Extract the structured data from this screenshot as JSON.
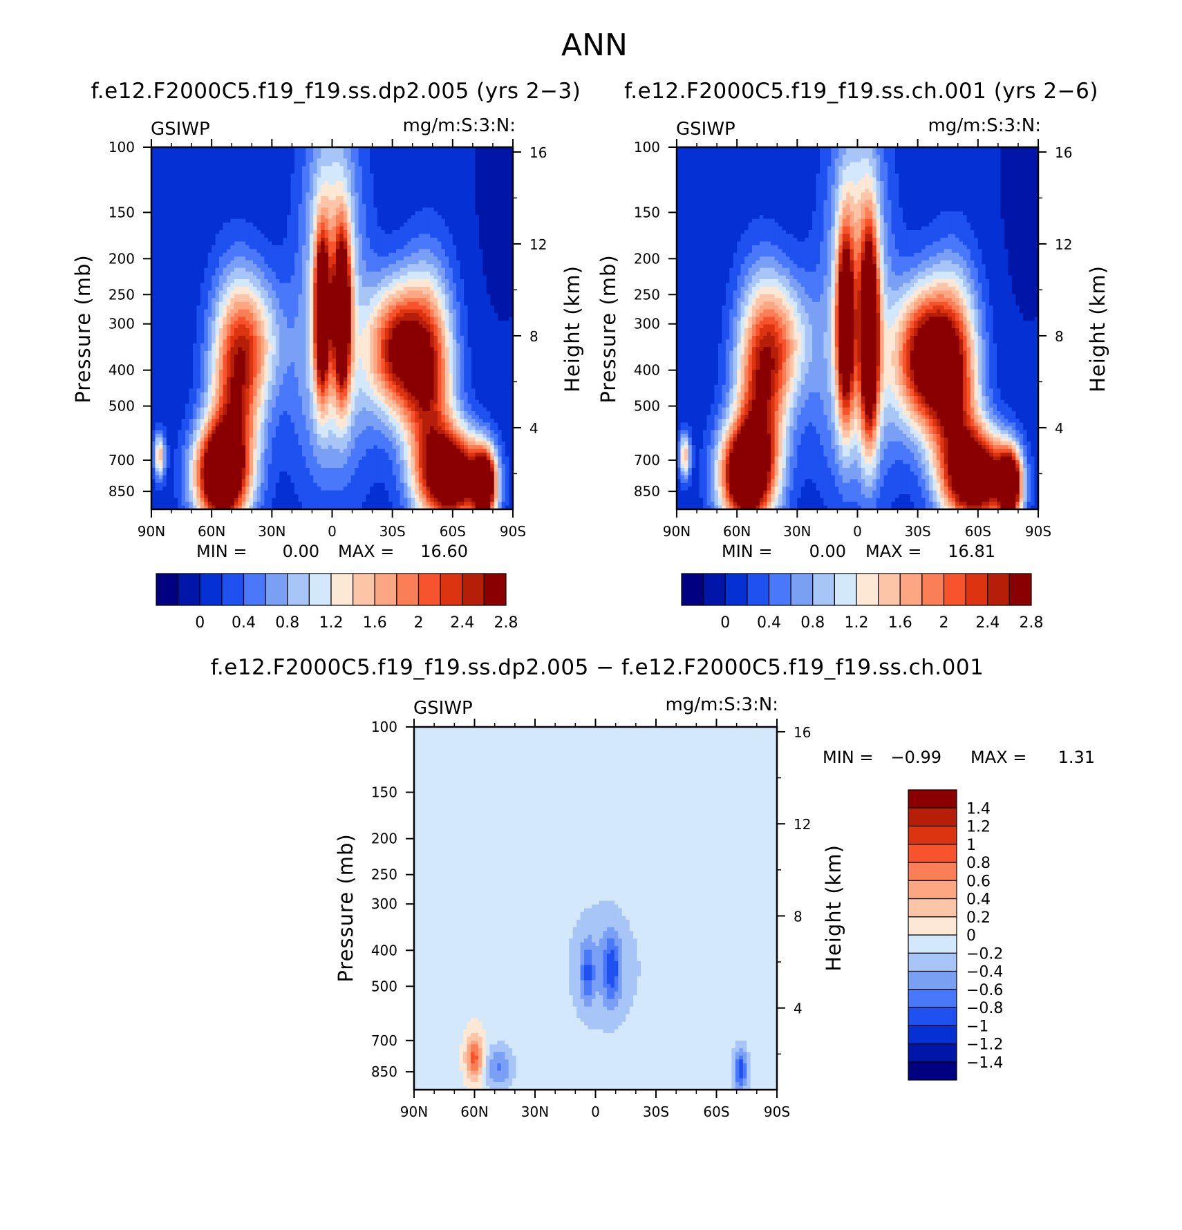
{
  "figure": {
    "title": "ANN",
    "diff_title": "f.e12.F2000C5.f19_f19.ss.dp2.005 − f.e12.F2000C5.f19_f19.ss.ch.001"
  },
  "chart_data": [
    {
      "type": "heatmap",
      "title": "f.e12.F2000C5.f19_f19.ss.dp2.005 (yrs 2−3)",
      "variable": "GSIWP",
      "units": "mg/m:S:3:N:",
      "ylabel": "Pressure (mb)",
      "ylabel_right": "Height (km)",
      "x_ticks": [
        "90N",
        "60N",
        "30N",
        "0",
        "30S",
        "60S",
        "90S"
      ],
      "y_ticks": [
        "100",
        "150",
        "200",
        "250",
        "300",
        "400",
        "500",
        "700",
        "850"
      ],
      "y_right_ticks": [
        "16",
        "12",
        "8",
        "4"
      ],
      "stats": {
        "min_label": "MIN =",
        "min": "0.00",
        "max_label": "MAX =",
        "max": "16.60"
      },
      "colorbar_labels": [
        "0",
        "0.4",
        "0.8",
        "1.2",
        "1.6",
        "2",
        "2.4",
        "2.8"
      ],
      "colors": [
        "#000080",
        "#0016a8",
        "#0531d4",
        "#1f50f0",
        "#4a78fa",
        "#7aa0f5",
        "#a8c5f7",
        "#d4e8fc",
        "#fde8d6",
        "#fcc5a8",
        "#fca682",
        "#fb7f56",
        "#f7532d",
        "#dc3410",
        "#b51e08",
        "#8a0000"
      ],
      "features": [
        {
          "lat": -85,
          "p": 130,
          "sx": 12,
          "sy": 0.7,
          "v": -0.1
        },
        {
          "lat": -32,
          "p": 350,
          "sx": 10,
          "sy": 0.28,
          "v": 2.4
        },
        {
          "lat": -48,
          "p": 420,
          "sx": 9,
          "sy": 0.45,
          "v": 2.3
        },
        {
          "lat": -60,
          "p": 780,
          "sx": 11,
          "sy": 0.2,
          "v": 3.4
        },
        {
          "lat": -76,
          "p": 820,
          "sx": 4,
          "sy": 0.15,
          "v": 3.3
        },
        {
          "lat": -5,
          "p": 280,
          "sx": 3,
          "sy": 0.35,
          "v": 3.2
        },
        {
          "lat": 5,
          "p": 280,
          "sx": 2.7,
          "sy": 0.35,
          "v": 3.0
        },
        {
          "lat": 0,
          "p": 160,
          "sx": 10,
          "sy": 0.55,
          "v": 1.1
        },
        {
          "lat": 0,
          "p": 420,
          "sx": 14,
          "sy": 0.5,
          "v": 0.9
        },
        {
          "lat": 48,
          "p": 450,
          "sx": 9,
          "sy": 0.45,
          "v": 2.2
        },
        {
          "lat": 38,
          "p": 330,
          "sx": 10,
          "sy": 0.28,
          "v": 1.0
        },
        {
          "lat": 56,
          "p": 770,
          "sx": 9,
          "sy": 0.22,
          "v": 3.5
        },
        {
          "lat": 86,
          "p": 680,
          "sx": 2,
          "sy": 0.1,
          "v": 1.5
        }
      ]
    },
    {
      "type": "heatmap",
      "title": "f.e12.F2000C5.f19_f19.ss.ch.001 (yrs 2−6)",
      "variable": "GSIWP",
      "units": "mg/m:S:3:N:",
      "ylabel": "Pressure (mb)",
      "ylabel_right": "Height (km)",
      "x_ticks": [
        "90N",
        "60N",
        "30N",
        "0",
        "30S",
        "60S",
        "90S"
      ],
      "y_ticks": [
        "100",
        "150",
        "200",
        "250",
        "300",
        "400",
        "500",
        "700",
        "850"
      ],
      "y_right_ticks": [
        "16",
        "12",
        "8",
        "4"
      ],
      "stats": {
        "min_label": "MIN =",
        "min": "0.00",
        "max_label": "MAX =",
        "max": "16.81"
      },
      "colorbar_labels": [
        "0",
        "0.4",
        "0.8",
        "1.2",
        "1.6",
        "2",
        "2.4",
        "2.8"
      ],
      "colors": [
        "#000080",
        "#0016a8",
        "#0531d4",
        "#1f50f0",
        "#4a78fa",
        "#7aa0f5",
        "#a8c5f7",
        "#d4e8fc",
        "#fde8d6",
        "#fcc5a8",
        "#fca682",
        "#fb7f56",
        "#f7532d",
        "#dc3410",
        "#b51e08",
        "#8a0000"
      ],
      "features": [
        {
          "lat": -85,
          "p": 130,
          "sx": 12,
          "sy": 0.7,
          "v": -0.1
        },
        {
          "lat": -33,
          "p": 370,
          "sx": 10,
          "sy": 0.3,
          "v": 2.7
        },
        {
          "lat": -48,
          "p": 430,
          "sx": 9,
          "sy": 0.45,
          "v": 2.4
        },
        {
          "lat": -60,
          "p": 780,
          "sx": 11,
          "sy": 0.2,
          "v": 3.4
        },
        {
          "lat": -76,
          "p": 820,
          "sx": 4,
          "sy": 0.15,
          "v": 3.3
        },
        {
          "lat": -6,
          "p": 320,
          "sx": 3.2,
          "sy": 0.45,
          "v": 3.3
        },
        {
          "lat": 6,
          "p": 300,
          "sx": 3,
          "sy": 0.4,
          "v": 2.9
        },
        {
          "lat": 0,
          "p": 160,
          "sx": 10,
          "sy": 0.55,
          "v": 1.1
        },
        {
          "lat": 0,
          "p": 420,
          "sx": 14,
          "sy": 0.5,
          "v": 1.0
        },
        {
          "lat": 48,
          "p": 450,
          "sx": 9,
          "sy": 0.45,
          "v": 2.3
        },
        {
          "lat": 36,
          "p": 330,
          "sx": 10,
          "sy": 0.28,
          "v": 1.1
        },
        {
          "lat": 56,
          "p": 770,
          "sx": 9,
          "sy": 0.22,
          "v": 3.5
        },
        {
          "lat": 86,
          "p": 680,
          "sx": 2,
          "sy": 0.1,
          "v": 1.5
        }
      ]
    },
    {
      "type": "heatmap",
      "title": "f.e12.F2000C5.f19_f19.ss.dp2.005 − f.e12.F2000C5.f19_f19.ss.ch.001",
      "variable": "GSIWP",
      "units": "mg/m:S:3:N:",
      "ylabel": "Pressure (mb)",
      "ylabel_right": "Height (km)",
      "x_ticks": [
        "90N",
        "60N",
        "30N",
        "0",
        "30S",
        "60S",
        "90S"
      ],
      "y_ticks": [
        "100",
        "150",
        "200",
        "250",
        "300",
        "400",
        "500",
        "700",
        "850"
      ],
      "y_right_ticks": [
        "16",
        "12",
        "8",
        "4"
      ],
      "stats": {
        "min_label": "MIN =",
        "min": "−0.99",
        "max_label": "MAX =",
        "max": "1.31"
      },
      "colorbar_labels": [
        "1.4",
        "1.2",
        "1",
        "0.8",
        "0.6",
        "0.4",
        "0.2",
        "0",
        "−0.2",
        "−0.4",
        "−0.6",
        "−0.8",
        "−1",
        "−1.2",
        "−1.4"
      ],
      "colors": [
        "#000080",
        "#0016a8",
        "#0531d4",
        "#1f50f0",
        "#4a78fa",
        "#7aa0f5",
        "#a8c5f7",
        "#d4e8fc",
        "#fde8d6",
        "#fcc5a8",
        "#fca682",
        "#fb7f56",
        "#f7532d",
        "#dc3410",
        "#b51e08",
        "#8a0000"
      ],
      "features": [
        {
          "lat": -8,
          "p": 450,
          "sx": 3,
          "sy": 0.15,
          "v": -0.65
        },
        {
          "lat": 4,
          "p": 460,
          "sx": 2.5,
          "sy": 0.13,
          "v": -0.55
        },
        {
          "lat": -4,
          "p": 440,
          "sx": 14,
          "sy": 0.3,
          "v": -0.3
        },
        {
          "lat": -72,
          "p": 840,
          "sx": 2.5,
          "sy": 0.1,
          "v": -0.85
        },
        {
          "lat": 60,
          "p": 780,
          "sx": 3,
          "sy": 0.1,
          "v": 0.95
        },
        {
          "lat": 48,
          "p": 830,
          "sx": 5,
          "sy": 0.1,
          "v": -0.55
        },
        {
          "lat": -55,
          "p": 180,
          "sx": 6,
          "sy": 0.9,
          "v": 0.07
        },
        {
          "lat": 55,
          "p": 200,
          "sx": 6,
          "sy": 0.9,
          "v": 0.07
        },
        {
          "lat": 85,
          "p": 200,
          "sx": 4,
          "sy": 0.8,
          "v": 0.07
        },
        {
          "lat": -20,
          "p": 150,
          "sx": 5,
          "sy": 0.5,
          "v": 0.05
        },
        {
          "lat": 20,
          "p": 150,
          "sx": 5,
          "sy": 0.5,
          "v": 0.05
        }
      ]
    }
  ]
}
